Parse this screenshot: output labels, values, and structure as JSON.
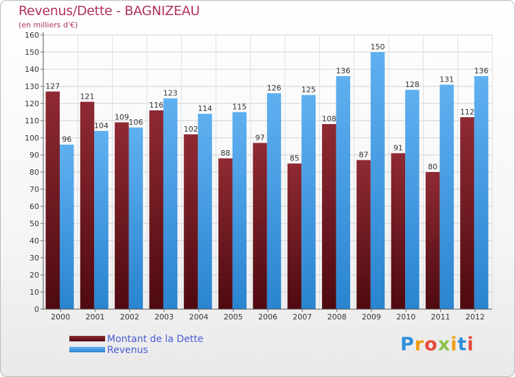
{
  "header": {
    "title": "Revenus/Dette - BAGNIZEAU",
    "subtitle": "(en milliers d'€)"
  },
  "logo": {
    "text": "Proxiti",
    "colors": [
      "#2e8fd8",
      "#f39c12",
      "#e74c3c",
      "#8bc34a",
      "#f39c12",
      "#2e8fd8",
      "#e74c3c"
    ]
  },
  "chart_data": {
    "type": "bar",
    "categories": [
      "2000",
      "2001",
      "2002",
      "2003",
      "2004",
      "2005",
      "2006",
      "2007",
      "2008",
      "2009",
      "2010",
      "2011",
      "2012"
    ],
    "series": [
      {
        "name": "Montant de la Dette",
        "color": "#7a1b22",
        "values": [
          127,
          121,
          109,
          116,
          102,
          88,
          97,
          85,
          108,
          87,
          91,
          80,
          112
        ]
      },
      {
        "name": "Revenus",
        "color": "#3d9be4",
        "values": [
          96,
          104,
          106,
          123,
          114,
          115,
          126,
          125,
          136,
          150,
          128,
          131,
          136
        ]
      }
    ],
    "yticks": [
      "0",
      "10",
      "20",
      "30",
      "40",
      "50",
      "60",
      "70",
      "80",
      "90",
      "100",
      "110",
      "120",
      "130",
      "140",
      "150",
      "160"
    ],
    "ylim": [
      0,
      160
    ],
    "grid": true,
    "legend_position": "bottom-left"
  }
}
